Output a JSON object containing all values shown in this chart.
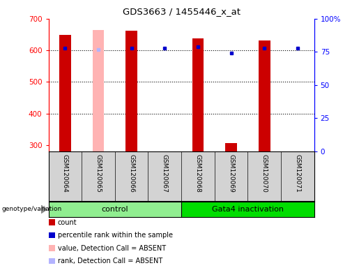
{
  "title": "GDS3663 / 1455446_x_at",
  "samples": [
    "GSM120064",
    "GSM120065",
    "GSM120066",
    "GSM120067",
    "GSM120068",
    "GSM120069",
    "GSM120070",
    "GSM120071"
  ],
  "count_values": [
    648,
    null,
    662,
    null,
    638,
    307,
    632,
    null
  ],
  "count_absent_values": [
    null,
    665,
    null,
    null,
    null,
    null,
    null,
    null
  ],
  "percentile_values": [
    78,
    null,
    78,
    78,
    79,
    74,
    78,
    78
  ],
  "percentile_absent_values": [
    null,
    77,
    null,
    null,
    null,
    null,
    null,
    null
  ],
  "ylim_left": [
    280,
    700
  ],
  "ylim_right": [
    0,
    100
  ],
  "yticks_left": [
    300,
    400,
    500,
    600,
    700
  ],
  "yticks_right": [
    0,
    25,
    50,
    75,
    100
  ],
  "ytick_right_labels": [
    "0",
    "25",
    "50",
    "75",
    "100%"
  ],
  "control_label": "control",
  "gata4_label": "Gata4 inactivation",
  "genotype_label": "genotype/variation",
  "count_color": "#cc0000",
  "count_absent_color": "#ffb3b3",
  "percentile_color": "#0000cc",
  "percentile_absent_color": "#b3b3ff",
  "background_color": "#ffffff",
  "plot_bg_color": "#ffffff",
  "tick_label_area_color": "#d3d3d3",
  "control_bg_color": "#90ee90",
  "gata4_bg_color": "#00dd00",
  "grid_color": "#000000",
  "legend_items": [
    {
      "label": "count",
      "color": "#cc0000"
    },
    {
      "label": "percentile rank within the sample",
      "color": "#0000cc"
    },
    {
      "label": "value, Detection Call = ABSENT",
      "color": "#ffb3b3"
    },
    {
      "label": "rank, Detection Call = ABSENT",
      "color": "#b3b3ff"
    }
  ],
  "base_value": 280,
  "bar_width": 0.35,
  "fig_width": 5.15,
  "fig_height": 3.84,
  "dpi": 100
}
